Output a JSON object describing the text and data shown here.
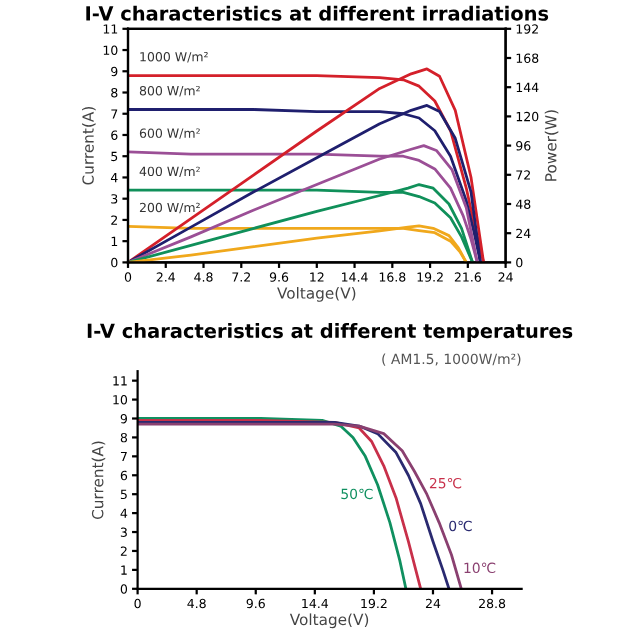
{
  "chart_data": [
    {
      "type": "line",
      "title": "I-V characteristics at different irradiations",
      "xlabel": "Voltage(V)",
      "ylabel": "Current(A)",
      "y2label": "Power(W)",
      "xlim": [
        0,
        24
      ],
      "xticks": [
        0,
        2.4,
        4.8,
        7.2,
        9.6,
        12,
        14.4,
        16.8,
        19.2,
        21.6,
        24
      ],
      "ylim": [
        0,
        11
      ],
      "yticks": [
        0,
        1,
        2,
        3,
        4,
        5,
        6,
        7,
        8,
        9,
        10,
        11
      ],
      "y2lim": [
        0,
        192
      ],
      "y2ticks": [
        0,
        24,
        48,
        72,
        96,
        120,
        144,
        168,
        192
      ],
      "grid": false,
      "legend": false,
      "line_style": "solid",
      "marker": "none",
      "series": [
        {
          "name": "1000 W/m²",
          "color": "#d4202a",
          "x": [
            0,
            4,
            8,
            12,
            16,
            17.5,
            18.5,
            19.5,
            20.5,
            21.5,
            22,
            22.6
          ],
          "values": [
            8.8,
            8.8,
            8.8,
            8.8,
            8.7,
            8.6,
            8.3,
            7.6,
            6.2,
            3.5,
            1.8,
            0
          ]
        },
        {
          "name": "800 W/m²",
          "color": "#1f1f6e",
          "x": [
            0,
            4,
            8,
            12,
            16,
            17.5,
            18.5,
            19.5,
            20.5,
            21.5,
            22,
            22.4
          ],
          "values": [
            7.2,
            7.2,
            7.2,
            7.1,
            7.1,
            7.0,
            6.8,
            6.2,
            5.0,
            2.9,
            1.4,
            0
          ]
        },
        {
          "name": "600 W/m²",
          "color": "#9b4f96",
          "x": [
            0,
            4,
            8,
            12,
            16,
            17.5,
            18.5,
            19.5,
            20.5,
            21.3,
            21.8,
            22.2
          ],
          "values": [
            5.2,
            5.1,
            5.1,
            5.1,
            5.0,
            5.0,
            4.8,
            4.4,
            3.5,
            2.2,
            1.1,
            0
          ]
        },
        {
          "name": "400 W/m²",
          "color": "#10905a",
          "x": [
            0,
            4,
            8,
            12,
            16,
            17.5,
            18.5,
            19.5,
            20.5,
            21.2,
            21.9
          ],
          "values": [
            3.4,
            3.4,
            3.4,
            3.4,
            3.3,
            3.3,
            3.1,
            2.8,
            2.1,
            1.2,
            0
          ]
        },
        {
          "name": "200 W/m²",
          "color": "#f0a81c",
          "x": [
            0,
            4,
            8,
            12,
            16,
            17.5,
            18.5,
            19.5,
            20.5,
            21.1,
            21.5
          ],
          "values": [
            1.7,
            1.6,
            1.6,
            1.6,
            1.6,
            1.6,
            1.5,
            1.4,
            1.0,
            0.5,
            0
          ]
        },
        {
          "axis": "y2",
          "color": "#d4202a",
          "x": [
            0,
            4,
            8,
            12,
            16,
            18,
            19,
            19.8,
            20.8,
            21.8,
            22.6
          ],
          "values": [
            0,
            36,
            72,
            108,
            143,
            155,
            159,
            153,
            125,
            70,
            0
          ]
        },
        {
          "axis": "y2",
          "color": "#1f1f6e",
          "x": [
            0,
            4,
            8,
            12,
            16,
            18,
            19,
            19.8,
            20.8,
            21.8,
            22.4
          ],
          "values": [
            0,
            29,
            58,
            86,
            114,
            125,
            129,
            124,
            102,
            58,
            0
          ]
        },
        {
          "axis": "y2",
          "color": "#9b4f96",
          "x": [
            0,
            4,
            8,
            12,
            16,
            18,
            18.8,
            19.6,
            20.6,
            21.5,
            22.2
          ],
          "values": [
            0,
            21,
            43,
            64,
            85,
            93,
            96,
            92,
            76,
            45,
            0
          ]
        },
        {
          "axis": "y2",
          "color": "#10905a",
          "x": [
            0,
            4,
            8,
            12,
            16,
            17.8,
            18.5,
            19.4,
            20.4,
            21.2,
            21.9
          ],
          "values": [
            0,
            14,
            28,
            42,
            55,
            61,
            64,
            61,
            48,
            28,
            0
          ]
        },
        {
          "axis": "y2",
          "color": "#f0a81c",
          "x": [
            0,
            4,
            8,
            12,
            16,
            17.8,
            18.5,
            19.4,
            20.4,
            21.0,
            21.5
          ],
          "values": [
            0,
            6,
            13,
            20,
            26,
            29,
            30,
            28,
            22,
            12,
            0
          ]
        }
      ]
    },
    {
      "type": "line",
      "title": "I-V characteristics at different temperatures",
      "subtitle": "( AM1.5, 1000W/m²)",
      "xlabel": "Voltage(V)",
      "ylabel": "Current(A)",
      "xlim": [
        0,
        31.2
      ],
      "xticks": [
        0,
        4.8,
        9.6,
        14.4,
        19.2,
        24,
        28.8
      ],
      "ylim": [
        0,
        11.5
      ],
      "yticks": [
        0,
        1,
        2,
        3,
        4,
        5,
        6,
        7,
        8,
        9,
        10,
        11
      ],
      "grid": false,
      "legend": false,
      "line_style": "solid",
      "marker": "none",
      "series": [
        {
          "name": "50℃",
          "color": "#109060",
          "x": [
            0,
            10,
            15,
            16.5,
            17.5,
            18.5,
            19.5,
            20.5,
            21.3,
            21.8
          ],
          "values": [
            9.0,
            9.0,
            8.9,
            8.6,
            8.0,
            7.0,
            5.5,
            3.5,
            1.5,
            0
          ]
        },
        {
          "name": "25℃",
          "color": "#c8304a",
          "x": [
            0,
            10,
            16,
            18,
            19,
            20,
            21,
            22,
            22.6,
            23
          ],
          "values": [
            8.9,
            8.9,
            8.8,
            8.5,
            7.8,
            6.5,
            4.8,
            2.5,
            1.0,
            0
          ]
        },
        {
          "name": "0℃",
          "color": "#2a2a70",
          "x": [
            0,
            10,
            16,
            18,
            19.5,
            21,
            22,
            23,
            24,
            24.8,
            25.3
          ],
          "values": [
            8.8,
            8.8,
            8.8,
            8.6,
            8.2,
            7.2,
            6.0,
            4.5,
            2.5,
            1.0,
            0
          ]
        },
        {
          "name": "10℃",
          "color": "#8a4070",
          "x": [
            0,
            10,
            16,
            18,
            20,
            21.5,
            22.5,
            23.5,
            24.5,
            25.5,
            26.3
          ],
          "values": [
            8.7,
            8.7,
            8.7,
            8.6,
            8.2,
            7.3,
            6.2,
            5.0,
            3.5,
            1.8,
            0
          ]
        }
      ]
    }
  ]
}
